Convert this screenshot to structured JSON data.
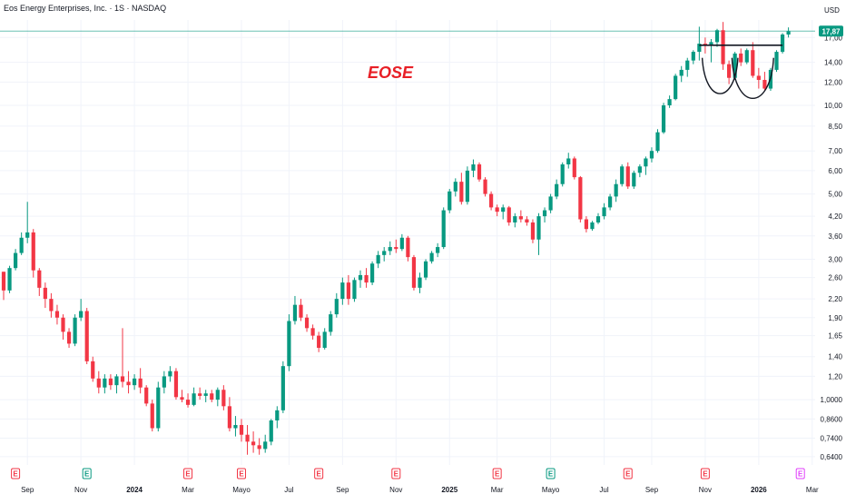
{
  "header": {
    "symbol_title": "Eos Energy Enterprises, Inc. · 1S · NASDAQ",
    "currency": "USD"
  },
  "colors": {
    "up": "#089981",
    "down": "#f23645",
    "grid": "#f0f3fa",
    "annotation": "#e81f26",
    "price_line": "#089981",
    "earnings_marker": "#f23645",
    "dividend_marker": "#089981",
    "future_marker": "#e040fb"
  },
  "annotation": {
    "text": "EOSE"
  },
  "last_price": {
    "value": 17.87,
    "label": "17,87"
  },
  "chart_data": {
    "type": "candlestick",
    "title": "Eos Energy Enterprises, Inc. · 1S · NASDAQ",
    "y_scale": "log",
    "ylim": [
      0.6,
      19.5
    ],
    "yticks": [
      {
        "v": 17.0,
        "label": "17,00"
      },
      {
        "v": 14.0,
        "label": "14,00"
      },
      {
        "v": 12.0,
        "label": "12,00"
      },
      {
        "v": 10.0,
        "label": "10,00"
      },
      {
        "v": 8.5,
        "label": "8,50"
      },
      {
        "v": 7.0,
        "label": "7,00"
      },
      {
        "v": 6.0,
        "label": "6,00"
      },
      {
        "v": 5.0,
        "label": "5,00"
      },
      {
        "v": 4.2,
        "label": "4,20"
      },
      {
        "v": 3.6,
        "label": "3,60"
      },
      {
        "v": 3.0,
        "label": "3,00"
      },
      {
        "v": 2.6,
        "label": "2,60"
      },
      {
        "v": 2.2,
        "label": "2,20"
      },
      {
        "v": 1.9,
        "label": "1,90"
      },
      {
        "v": 1.65,
        "label": "1,65"
      },
      {
        "v": 1.4,
        "label": "1,40"
      },
      {
        "v": 1.2,
        "label": "1,20"
      },
      {
        "v": 1.0,
        "label": "1,0000"
      },
      {
        "v": 0.86,
        "label": "0,8600"
      },
      {
        "v": 0.74,
        "label": "0,7400"
      },
      {
        "v": 0.64,
        "label": "0,6400"
      }
    ],
    "xticks": [
      {
        "i": 4,
        "label": "Sep",
        "bold": false
      },
      {
        "i": 13,
        "label": "Nov",
        "bold": false
      },
      {
        "i": 22,
        "label": "2024",
        "bold": true
      },
      {
        "i": 31,
        "label": "Mar",
        "bold": false
      },
      {
        "i": 40,
        "label": "Mayo",
        "bold": false
      },
      {
        "i": 48,
        "label": "Jul",
        "bold": false
      },
      {
        "i": 57,
        "label": "Sep",
        "bold": false
      },
      {
        "i": 66,
        "label": "Nov",
        "bold": false
      },
      {
        "i": 75,
        "label": "2025",
        "bold": true
      },
      {
        "i": 83,
        "label": "Mar",
        "bold": false
      },
      {
        "i": 92,
        "label": "Mayo",
        "bold": false
      },
      {
        "i": 101,
        "label": "Jul",
        "bold": false
      },
      {
        "i": 109,
        "label": "Sep",
        "bold": false
      },
      {
        "i": 118,
        "label": "Nov",
        "bold": false
      },
      {
        "i": 127,
        "label": "2026",
        "bold": true
      },
      {
        "i": 136,
        "label": "Mar",
        "bold": false
      }
    ],
    "events": [
      {
        "i": 2,
        "kind": "earnings",
        "label": "E"
      },
      {
        "i": 14,
        "kind": "dividend",
        "label": "E"
      },
      {
        "i": 31,
        "kind": "earnings",
        "label": "E"
      },
      {
        "i": 40,
        "kind": "earnings",
        "label": "E"
      },
      {
        "i": 53,
        "kind": "earnings",
        "label": "E"
      },
      {
        "i": 66,
        "kind": "earnings",
        "label": "E"
      },
      {
        "i": 83,
        "kind": "earnings",
        "label": "E"
      },
      {
        "i": 92,
        "kind": "dividend",
        "label": "E"
      },
      {
        "i": 105,
        "kind": "earnings",
        "label": "E"
      },
      {
        "i": 118,
        "kind": "earnings",
        "label": "E"
      },
      {
        "i": 134,
        "kind": "future",
        "label": "E"
      }
    ],
    "pattern": {
      "neckline": {
        "i_start": 117,
        "i_end": 131,
        "price": 16.0
      },
      "cups": [
        {
          "i_start": 117.5,
          "i_end": 123.5,
          "top": 14.5,
          "bottom": 11.0
        },
        {
          "i_start": 122.5,
          "i_end": 129.5,
          "top": 14.5,
          "bottom": 10.6
        }
      ]
    },
    "candles": [
      [
        2.72,
        2.72,
        2.18,
        2.35
      ],
      [
        2.35,
        2.85,
        2.3,
        2.8
      ],
      [
        2.8,
        3.25,
        2.75,
        3.15
      ],
      [
        3.15,
        3.7,
        3.1,
        3.55
      ],
      [
        3.55,
        4.7,
        3.4,
        3.7
      ],
      [
        3.7,
        3.8,
        2.6,
        2.75
      ],
      [
        2.75,
        2.8,
        2.25,
        2.4
      ],
      [
        2.4,
        2.5,
        2.05,
        2.2
      ],
      [
        2.2,
        2.3,
        1.9,
        2.0
      ],
      [
        2.0,
        2.1,
        1.8,
        1.9
      ],
      [
        1.9,
        1.95,
        1.6,
        1.7
      ],
      [
        1.7,
        1.75,
        1.5,
        1.55
      ],
      [
        1.55,
        1.95,
        1.52,
        1.9
      ],
      [
        1.9,
        2.2,
        1.85,
        2.0
      ],
      [
        2.0,
        2.05,
        1.32,
        1.35
      ],
      [
        1.35,
        1.4,
        1.15,
        1.18
      ],
      [
        1.18,
        1.25,
        1.05,
        1.1
      ],
      [
        1.1,
        1.22,
        1.05,
        1.18
      ],
      [
        1.18,
        1.22,
        1.08,
        1.12
      ],
      [
        1.12,
        1.22,
        1.05,
        1.2
      ],
      [
        1.2,
        1.75,
        1.1,
        1.15
      ],
      [
        1.15,
        1.25,
        1.05,
        1.12
      ],
      [
        1.12,
        1.22,
        1.08,
        1.18
      ],
      [
        1.18,
        1.28,
        1.05,
        1.1
      ],
      [
        1.1,
        1.12,
        0.95,
        0.97
      ],
      [
        0.97,
        1.0,
        0.78,
        0.8
      ],
      [
        0.8,
        1.15,
        0.78,
        1.1
      ],
      [
        1.1,
        1.25,
        1.05,
        1.2
      ],
      [
        1.2,
        1.3,
        1.15,
        1.25
      ],
      [
        1.25,
        1.28,
        1.0,
        1.02
      ],
      [
        1.02,
        1.08,
        0.98,
        1.0
      ],
      [
        1.0,
        1.05,
        0.94,
        0.96
      ],
      [
        0.96,
        1.1,
        0.95,
        1.05
      ],
      [
        1.05,
        1.1,
        1.0,
        1.03
      ],
      [
        1.03,
        1.08,
        0.98,
        1.05
      ],
      [
        1.05,
        1.08,
        0.98,
        1.0
      ],
      [
        1.0,
        1.1,
        0.95,
        1.08
      ],
      [
        1.08,
        1.12,
        0.92,
        0.95
      ],
      [
        0.95,
        1.02,
        0.78,
        0.8
      ],
      [
        0.8,
        0.88,
        0.75,
        0.82
      ],
      [
        0.82,
        0.86,
        0.72,
        0.76
      ],
      [
        0.76,
        0.82,
        0.65,
        0.72
      ],
      [
        0.72,
        0.78,
        0.66,
        0.7
      ],
      [
        0.7,
        0.74,
        0.65,
        0.68
      ],
      [
        0.68,
        0.76,
        0.66,
        0.72
      ],
      [
        0.72,
        0.86,
        0.7,
        0.85
      ],
      [
        0.85,
        0.95,
        0.8,
        0.92
      ],
      [
        0.92,
        1.35,
        0.9,
        1.3
      ],
      [
        1.3,
        1.95,
        1.25,
        1.85
      ],
      [
        1.85,
        2.25,
        1.8,
        2.1
      ],
      [
        2.1,
        2.2,
        1.85,
        1.9
      ],
      [
        1.9,
        1.95,
        1.7,
        1.75
      ],
      [
        1.75,
        1.8,
        1.6,
        1.65
      ],
      [
        1.65,
        1.7,
        1.45,
        1.5
      ],
      [
        1.5,
        1.75,
        1.48,
        1.7
      ],
      [
        1.7,
        2.0,
        1.65,
        1.95
      ],
      [
        1.95,
        2.3,
        1.9,
        2.2
      ],
      [
        2.2,
        2.6,
        2.1,
        2.5
      ],
      [
        2.5,
        2.65,
        2.1,
        2.2
      ],
      [
        2.2,
        2.6,
        2.15,
        2.55
      ],
      [
        2.55,
        2.75,
        2.4,
        2.65
      ],
      [
        2.65,
        2.8,
        2.4,
        2.5
      ],
      [
        2.5,
        2.95,
        2.45,
        2.9
      ],
      [
        2.9,
        3.2,
        2.8,
        3.1
      ],
      [
        3.1,
        3.3,
        2.95,
        3.2
      ],
      [
        3.2,
        3.45,
        3.1,
        3.3
      ],
      [
        3.3,
        3.5,
        3.15,
        3.25
      ],
      [
        3.25,
        3.65,
        3.2,
        3.55
      ],
      [
        3.55,
        3.6,
        2.95,
        3.05
      ],
      [
        3.05,
        3.1,
        2.35,
        2.4
      ],
      [
        2.4,
        2.7,
        2.3,
        2.6
      ],
      [
        2.6,
        3.0,
        2.55,
        2.95
      ],
      [
        2.95,
        3.2,
        2.9,
        3.15
      ],
      [
        3.15,
        3.4,
        3.05,
        3.3
      ],
      [
        3.3,
        4.5,
        3.25,
        4.4
      ],
      [
        4.4,
        5.2,
        4.3,
        5.1
      ],
      [
        5.1,
        5.65,
        4.9,
        5.5
      ],
      [
        5.5,
        5.9,
        4.6,
        4.7
      ],
      [
        4.7,
        6.2,
        4.6,
        6.0
      ],
      [
        6.0,
        6.55,
        5.7,
        6.3
      ],
      [
        6.3,
        6.4,
        5.5,
        5.6
      ],
      [
        5.6,
        5.7,
        4.9,
        5.0
      ],
      [
        5.0,
        5.1,
        4.4,
        4.5
      ],
      [
        4.5,
        4.6,
        4.2,
        4.35
      ],
      [
        4.35,
        4.6,
        4.1,
        4.5
      ],
      [
        4.5,
        4.55,
        3.9,
        4.0
      ],
      [
        4.0,
        4.3,
        3.85,
        4.2
      ],
      [
        4.2,
        4.4,
        4.0,
        4.1
      ],
      [
        4.1,
        4.2,
        3.9,
        4.0
      ],
      [
        4.0,
        4.1,
        3.4,
        3.5
      ],
      [
        3.5,
        4.3,
        3.1,
        4.2
      ],
      [
        4.2,
        4.5,
        4.0,
        4.4
      ],
      [
        4.4,
        5.0,
        4.3,
        4.9
      ],
      [
        4.9,
        5.6,
        4.8,
        5.4
      ],
      [
        5.4,
        6.4,
        5.3,
        6.3
      ],
      [
        6.3,
        6.9,
        6.1,
        6.6
      ],
      [
        6.6,
        6.7,
        5.6,
        5.7
      ],
      [
        5.7,
        5.75,
        4.0,
        4.1
      ],
      [
        4.1,
        4.2,
        3.7,
        3.8
      ],
      [
        3.8,
        4.05,
        3.75,
        4.0
      ],
      [
        4.0,
        4.3,
        3.95,
        4.2
      ],
      [
        4.2,
        4.65,
        4.1,
        4.5
      ],
      [
        4.5,
        5.0,
        4.4,
        4.9
      ],
      [
        4.9,
        5.6,
        4.7,
        5.4
      ],
      [
        5.4,
        6.3,
        5.3,
        6.2
      ],
      [
        6.2,
        6.4,
        5.2,
        5.3
      ],
      [
        5.3,
        6.0,
        5.2,
        5.9
      ],
      [
        5.9,
        6.3,
        5.7,
        6.2
      ],
      [
        6.2,
        6.7,
        5.8,
        6.6
      ],
      [
        6.6,
        7.2,
        6.4,
        7.0
      ],
      [
        7.0,
        8.3,
        6.9,
        8.1
      ],
      [
        8.1,
        10.2,
        8.0,
        10.0
      ],
      [
        10.0,
        10.8,
        9.8,
        10.5
      ],
      [
        10.5,
        12.8,
        10.4,
        12.6
      ],
      [
        12.6,
        13.6,
        12.0,
        13.2
      ],
      [
        13.2,
        14.5,
        12.5,
        14.2
      ],
      [
        14.2,
        15.4,
        13.8,
        15.2
      ],
      [
        15.2,
        18.5,
        14.2,
        16.2
      ],
      [
        16.2,
        17.0,
        15.0,
        16.0
      ],
      [
        16.0,
        16.8,
        14.0,
        16.4
      ],
      [
        16.4,
        18.2,
        15.8,
        18.0
      ],
      [
        18.0,
        19.2,
        13.2,
        13.8
      ],
      [
        13.8,
        14.2,
        11.8,
        12.4
      ],
      [
        12.4,
        15.2,
        12.2,
        15.0
      ],
      [
        15.0,
        15.6,
        13.6,
        14.0
      ],
      [
        14.0,
        15.6,
        13.8,
        15.4
      ],
      [
        15.4,
        16.4,
        12.4,
        12.6
      ],
      [
        12.6,
        13.4,
        11.4,
        12.2
      ],
      [
        12.2,
        13.0,
        11.2,
        11.4
      ],
      [
        11.4,
        13.4,
        11.2,
        13.2
      ],
      [
        13.2,
        15.4,
        13.0,
        15.2
      ],
      [
        15.2,
        17.6,
        15.0,
        17.4
      ],
      [
        17.4,
        18.4,
        17.0,
        17.87
      ]
    ]
  }
}
